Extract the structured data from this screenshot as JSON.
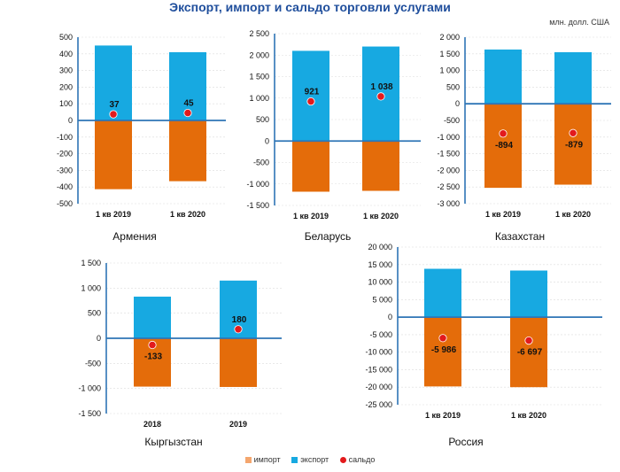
{
  "title": "Экспорт, импорт и сальдо торговли услугами",
  "units": "млн. долл. США",
  "colors": {
    "import": "#e46c0a",
    "export": "#17a9e1",
    "saldo": "#e31a1c",
    "axis": "#2e75b6",
    "grid": "#dcdcdc"
  },
  "legend": [
    {
      "key": "import",
      "label": "импорт",
      "color": "#f4a66e",
      "shape": "square"
    },
    {
      "key": "export",
      "label": "экспорт",
      "color": "#17a9e1",
      "shape": "square"
    },
    {
      "key": "saldo",
      "label": "сальдо",
      "color": "#e31a1c",
      "shape": "dot"
    }
  ],
  "chart_data": [
    {
      "type": "bar",
      "country": "Армения",
      "categories": [
        "1 кв 2019",
        "1 кв 2020"
      ],
      "series": [
        {
          "name": "экспорт",
          "values": [
            450,
            410
          ]
        },
        {
          "name": "импорт",
          "values": [
            -413,
            -365
          ]
        },
        {
          "name": "сальдо",
          "values": [
            37,
            45
          ]
        }
      ],
      "data_labels": [
        "37",
        "45"
      ],
      "ylim": [
        -500,
        500
      ],
      "yticks": [
        -500,
        -400,
        -300,
        -200,
        -100,
        0,
        100,
        200,
        300,
        400,
        500
      ],
      "ytick_labels": [
        "-500",
        "-400",
        "-300",
        "-200",
        "-100",
        "0",
        "100",
        "200",
        "300",
        "400",
        "500"
      ]
    },
    {
      "type": "bar",
      "country": "Беларусь",
      "categories": [
        "1 кв 2019",
        "1 кв 2020"
      ],
      "series": [
        {
          "name": "экспорт",
          "values": [
            2100,
            2200
          ]
        },
        {
          "name": "импорт",
          "values": [
            -1180,
            -1160
          ]
        },
        {
          "name": "сальдо",
          "values": [
            921,
            1038
          ]
        }
      ],
      "data_labels": [
        "921",
        "1 038"
      ],
      "ylim": [
        -1500,
        2500
      ],
      "yticks": [
        -1500,
        -1000,
        -500,
        0,
        500,
        1000,
        1500,
        2000,
        2500
      ],
      "ytick_labels": [
        "-1 500",
        "-1 000",
        "-500",
        "0",
        "500",
        "1 000",
        "1 500",
        "2 000",
        "2 500"
      ]
    },
    {
      "type": "bar",
      "country": "Казахстан",
      "categories": [
        "1 кв 2019",
        "1 кв 2020"
      ],
      "series": [
        {
          "name": "экспорт",
          "values": [
            1630,
            1550
          ]
        },
        {
          "name": "импорт",
          "values": [
            -2524,
            -2429
          ]
        },
        {
          "name": "сальдо",
          "values": [
            -894,
            -879
          ]
        }
      ],
      "data_labels": [
        "-894",
        "-879"
      ],
      "ylim": [
        -3000,
        2000
      ],
      "yticks": [
        -3000,
        -2500,
        -2000,
        -1500,
        -1000,
        -500,
        0,
        500,
        1000,
        1500,
        2000
      ],
      "ytick_labels": [
        "-3 000",
        "-2 500",
        "-2 000",
        "-1 500",
        "-1 000",
        "-500",
        "0",
        "500",
        "1 000",
        "1 500",
        "2 000"
      ]
    },
    {
      "type": "bar",
      "country": "Кыргызстан",
      "categories": [
        "2018",
        "2019"
      ],
      "series": [
        {
          "name": "экспорт",
          "values": [
            830,
            1150
          ]
        },
        {
          "name": "импорт",
          "values": [
            -963,
            -970
          ]
        },
        {
          "name": "сальдо",
          "values": [
            -133,
            180
          ]
        }
      ],
      "data_labels": [
        "-133",
        "180"
      ],
      "ylim": [
        -1500,
        1500
      ],
      "yticks": [
        -1500,
        -1000,
        -500,
        0,
        500,
        1000,
        1500
      ],
      "ytick_labels": [
        "-1 500",
        "-1 000",
        "-500",
        "0",
        "500",
        "1 000",
        "1 500"
      ]
    },
    {
      "type": "bar",
      "country": "Россия",
      "categories": [
        "1 кв 2019",
        "1 кв 2020"
      ],
      "series": [
        {
          "name": "экспорт",
          "values": [
            13800,
            13300
          ]
        },
        {
          "name": "импорт",
          "values": [
            -19786,
            -19997
          ]
        },
        {
          "name": "сальдо",
          "values": [
            -5986,
            -6697
          ]
        }
      ],
      "data_labels": [
        "-5 986",
        "-6 697"
      ],
      "ylim": [
        -25000,
        20000
      ],
      "yticks": [
        -25000,
        -20000,
        -15000,
        -10000,
        -5000,
        0,
        5000,
        10000,
        15000,
        20000
      ],
      "ytick_labels": [
        "-25 000",
        "-20 000",
        "-15 000",
        "-10 000",
        "-5 000",
        "0",
        "5 000",
        "10 000",
        "15 000",
        "20 000"
      ]
    }
  ]
}
